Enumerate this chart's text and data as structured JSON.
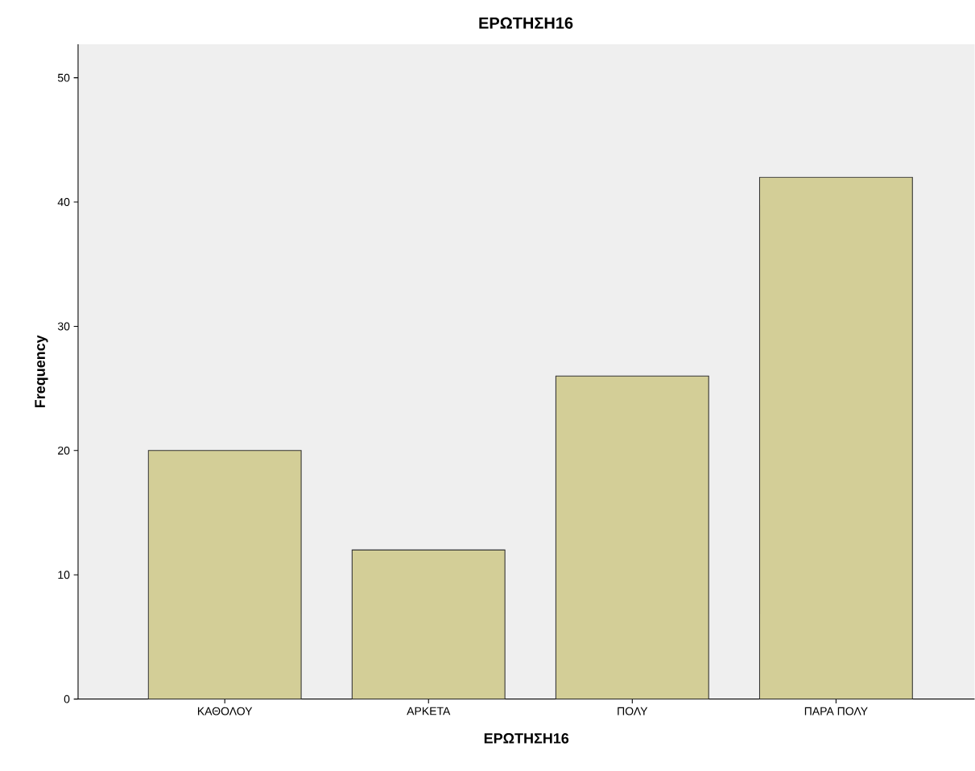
{
  "chart_data": {
    "type": "bar",
    "title": "ΕΡΩΤΗΣΗ16",
    "xlabel": "ΕΡΩΤΗΣΗ16",
    "ylabel": "Frequency",
    "categories": [
      "ΚΑΘΟΛΟΥ",
      "ΑΡΚΕΤΑ",
      "ΠΟΛΥ",
      "ΠΑΡΑ ΠΟΛΥ"
    ],
    "values": [
      20,
      12,
      26,
      42
    ],
    "color": "#d3ce97",
    "ylim": [
      0,
      52.7
    ],
    "yticks": [
      0,
      10,
      20,
      30,
      40,
      50
    ],
    "grid": false
  }
}
